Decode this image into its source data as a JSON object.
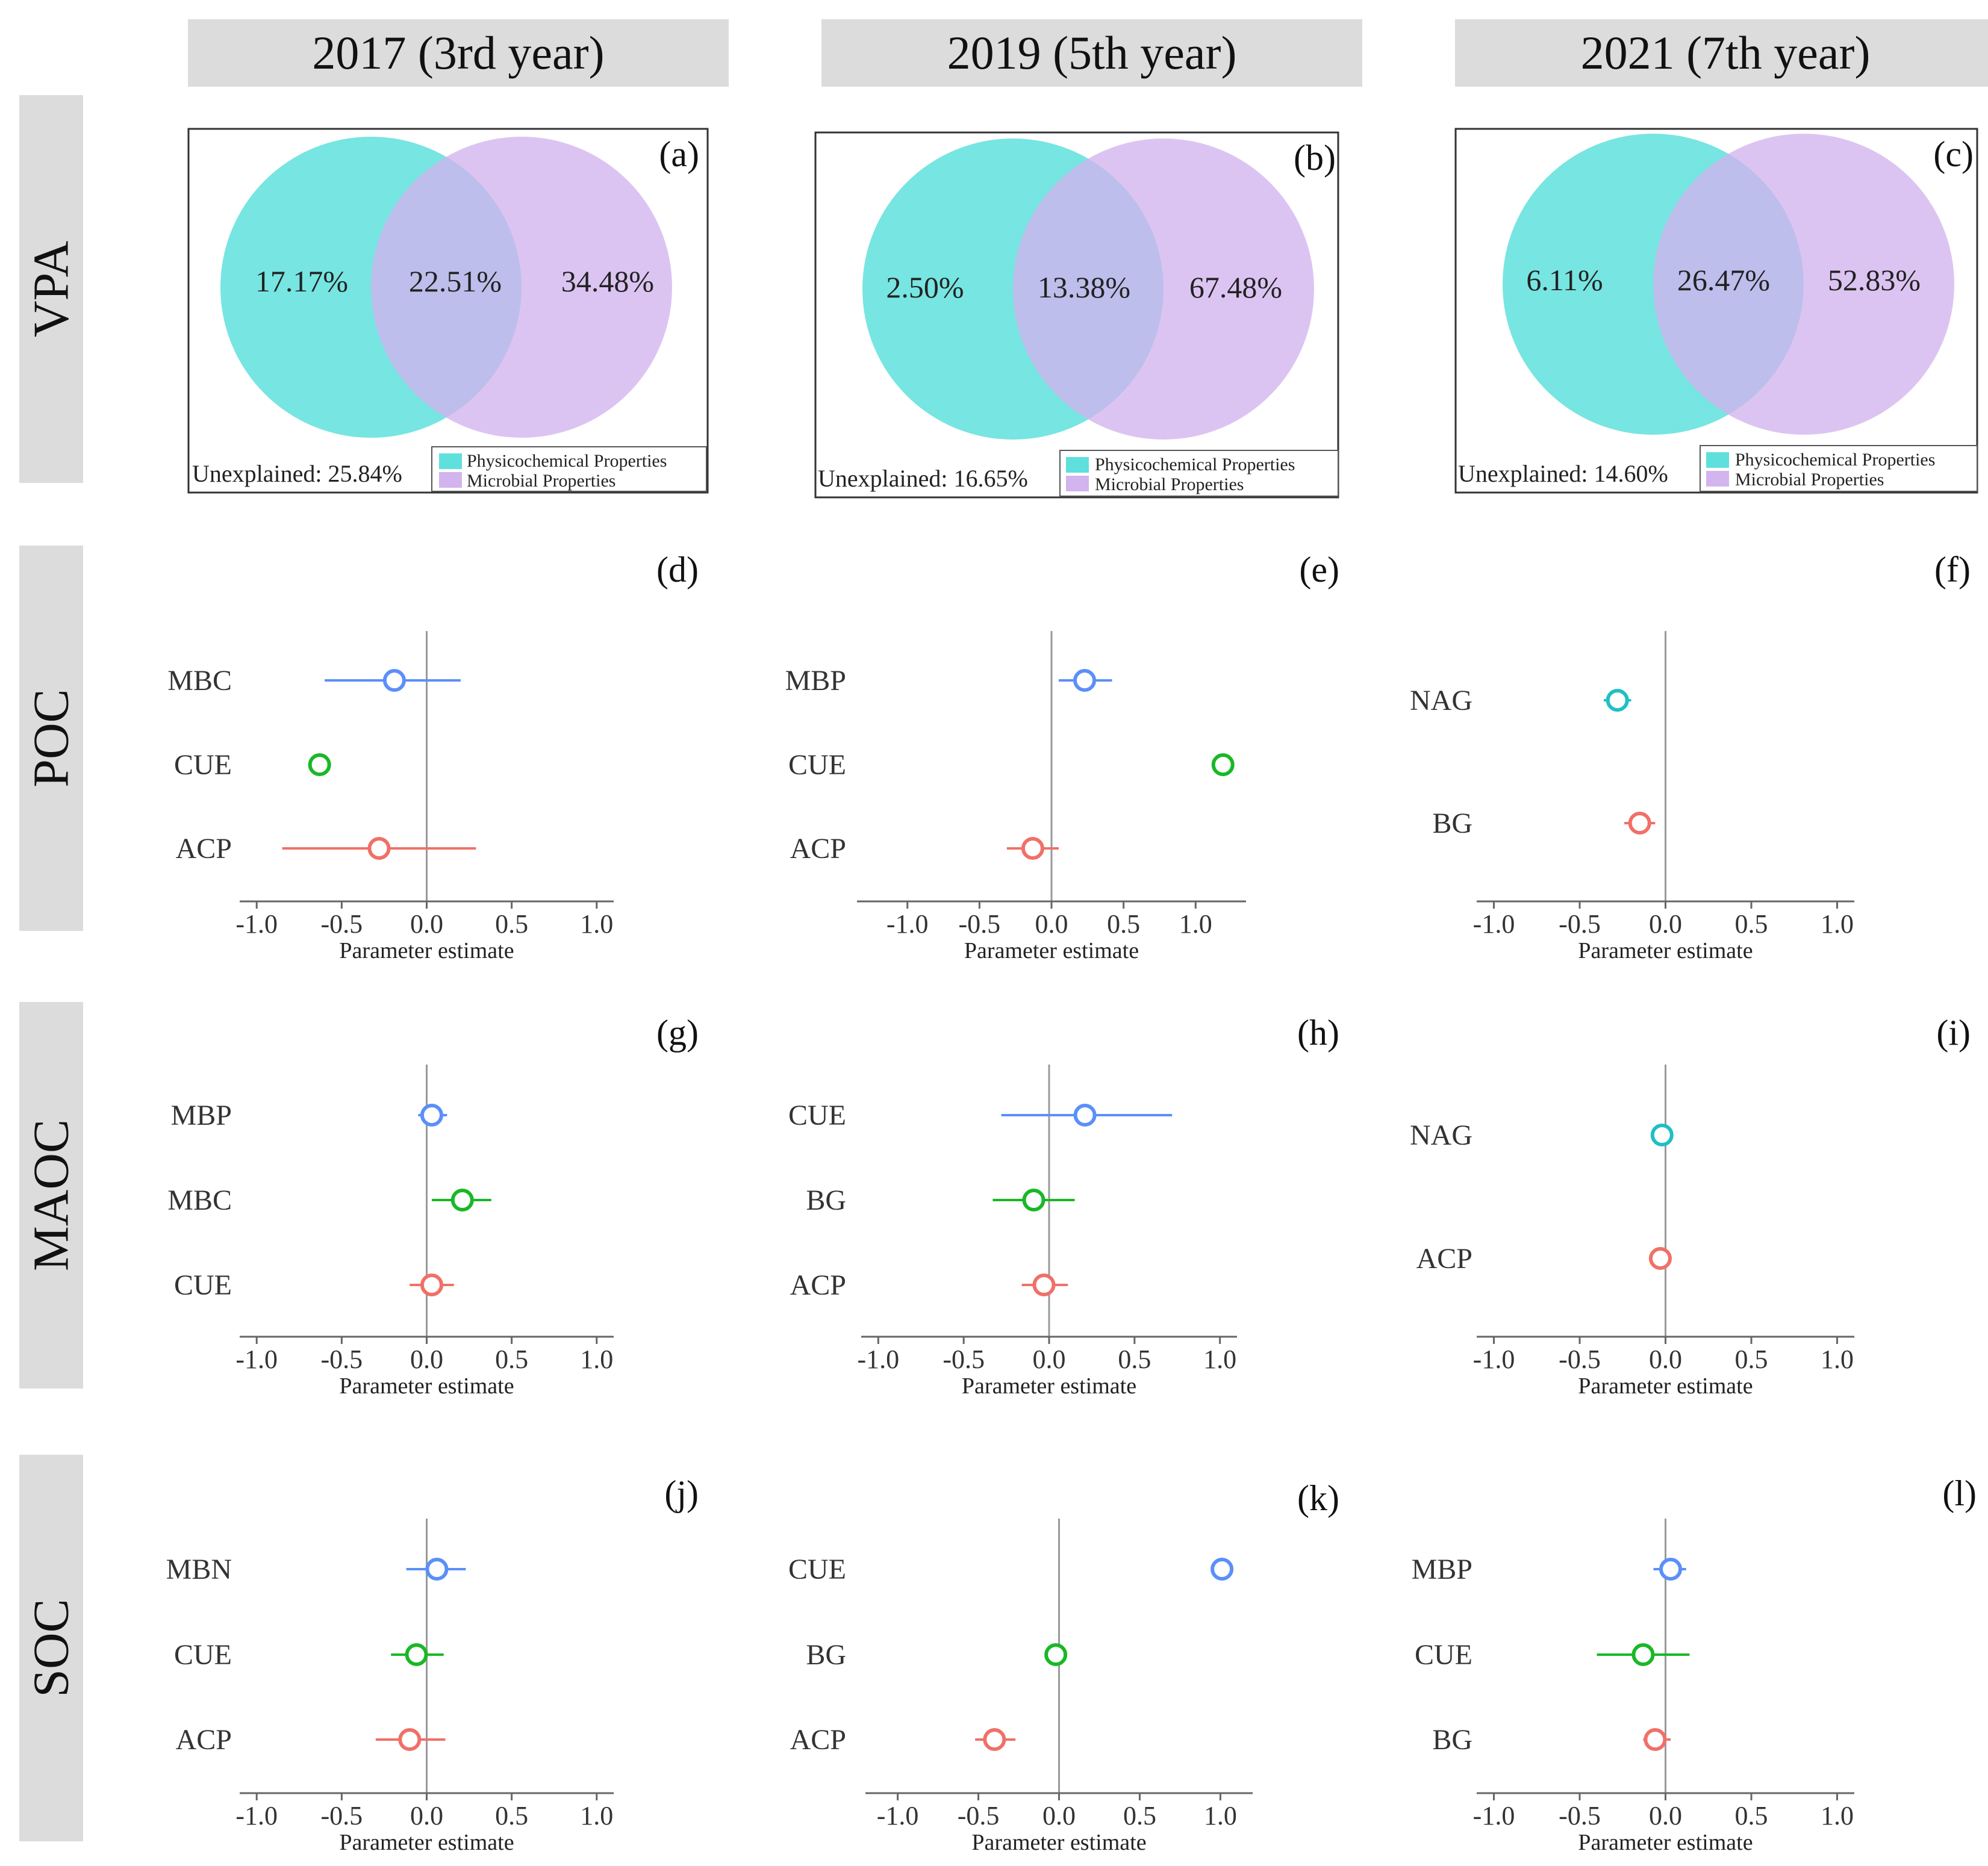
{
  "columns": [
    "2017 (3rd year)",
    "2019 (5th year)",
    "2021 (7th year)"
  ],
  "rows": [
    "VPA",
    "POC",
    "MAOC",
    "SOC"
  ],
  "colors": {
    "physicochemical": "#5fe0dc",
    "microbial": "#d2b4ee",
    "blue": "#5b8ff9",
    "green": "#19b826",
    "red": "#f07068",
    "teal": "#1fbfc6",
    "axis": "#999999"
  },
  "venn": [
    {
      "label": "(a)",
      "left": "17.17%",
      "middle": "22.51%",
      "right": "34.48%",
      "unexplained": "Unexplained: 25.84%",
      "legend_phys": "Physicochemical Properties",
      "legend_micro": "Microbial Properties"
    },
    {
      "label": "(b)",
      "left": "2.50%",
      "middle": "13.38%",
      "right": "67.48%",
      "unexplained": "Unexplained: 16.65%",
      "legend_phys": "Physicochemical Properties",
      "legend_micro": "Microbial Properties"
    },
    {
      "label": "(c)",
      "left": "6.11%",
      "middle": "26.47%",
      "right": "52.83%",
      "unexplained": "Unexplained: 14.60%",
      "legend_phys": "Physicochemical Properties",
      "legend_micro": "Microbial Properties"
    }
  ],
  "chart_data": [
    {
      "type": "forest",
      "label": "(d)",
      "row": "POC",
      "col": "2017 (3rd year)",
      "xlabel": "Parameter estimate",
      "xlim": [
        -1.1,
        1.1
      ],
      "xticks": [
        "-1.0",
        "-0.5",
        "0.0",
        "0.5",
        "1.0"
      ],
      "xtick_values": [
        -1.0,
        -0.5,
        0.0,
        0.5,
        1.0
      ],
      "points": [
        {
          "name": "MBC",
          "estimate": -0.19,
          "low": -0.6,
          "high": 0.2,
          "color": "blue"
        },
        {
          "name": "CUE",
          "estimate": -0.63,
          "low": -0.63,
          "high": -0.63,
          "color": "green"
        },
        {
          "name": "ACP",
          "estimate": -0.28,
          "low": -0.85,
          "high": 0.29,
          "color": "red"
        }
      ]
    },
    {
      "type": "forest",
      "label": "(e)",
      "row": "POC",
      "col": "2019 (5th year)",
      "xlabel": "Parameter estimate",
      "xlim": [
        -1.35,
        1.35
      ],
      "xticks": [
        "-1.0",
        "-0.5",
        "0.0",
        "0.5",
        "1.0"
      ],
      "xtick_values": [
        -1.0,
        -0.5,
        0.0,
        0.5,
        1.0
      ],
      "points": [
        {
          "name": "MBP",
          "estimate": 0.23,
          "low": 0.05,
          "high": 0.42,
          "color": "blue"
        },
        {
          "name": "CUE",
          "estimate": 1.19,
          "low": 1.19,
          "high": 1.19,
          "color": "green"
        },
        {
          "name": "ACP",
          "estimate": -0.13,
          "low": -0.31,
          "high": 0.05,
          "color": "red"
        }
      ]
    },
    {
      "type": "forest",
      "label": "(f)",
      "row": "POC",
      "col": "2021 (7th year)",
      "xlabel": "Parameter estimate",
      "xlim": [
        -1.1,
        1.1
      ],
      "xticks": [
        "-1.0",
        "-0.5",
        "0.0",
        "0.5",
        "1.0"
      ],
      "xtick_values": [
        -1.0,
        -0.5,
        0.0,
        0.5,
        1.0
      ],
      "points": [
        {
          "name": "NAG",
          "estimate": -0.28,
          "low": -0.36,
          "high": -0.2,
          "color": "teal"
        },
        {
          "name": "BG",
          "estimate": -0.15,
          "low": -0.24,
          "high": -0.06,
          "color": "red"
        }
      ]
    },
    {
      "type": "forest",
      "label": "(g)",
      "row": "MAOC",
      "col": "2017 (3rd year)",
      "xlabel": "Parameter estimate",
      "xlim": [
        -1.1,
        1.1
      ],
      "xticks": [
        "-1.0",
        "-0.5",
        "0.0",
        "0.5",
        "1.0"
      ],
      "xtick_values": [
        -1.0,
        -0.5,
        0.0,
        0.5,
        1.0
      ],
      "points": [
        {
          "name": "MBP",
          "estimate": 0.03,
          "low": -0.05,
          "high": 0.12,
          "color": "blue"
        },
        {
          "name": "MBC",
          "estimate": 0.21,
          "low": 0.03,
          "high": 0.38,
          "color": "green"
        },
        {
          "name": "CUE",
          "estimate": 0.03,
          "low": -0.1,
          "high": 0.16,
          "color": "red"
        }
      ]
    },
    {
      "type": "forest",
      "label": "(h)",
      "row": "MAOC",
      "col": "2019 (5th year)",
      "xlabel": "Parameter estimate",
      "xlim": [
        -1.1,
        1.1
      ],
      "xticks": [
        "-1.0",
        "-0.5",
        "0.0",
        "0.5",
        "1.0"
      ],
      "xtick_values": [
        -1.0,
        -0.5,
        0.0,
        0.5,
        1.0
      ],
      "points": [
        {
          "name": "CUE",
          "estimate": 0.21,
          "low": -0.28,
          "high": 0.72,
          "color": "blue"
        },
        {
          "name": "BG",
          "estimate": -0.09,
          "low": -0.33,
          "high": 0.15,
          "color": "green"
        },
        {
          "name": "ACP",
          "estimate": -0.03,
          "low": -0.16,
          "high": 0.11,
          "color": "red"
        }
      ]
    },
    {
      "type": "forest",
      "label": "(i)",
      "row": "MAOC",
      "col": "2021 (7th year)",
      "xlabel": "Parameter estimate",
      "xlim": [
        -1.1,
        1.1
      ],
      "xticks": [
        "-1.0",
        "-0.5",
        "0.0",
        "0.5",
        "1.0"
      ],
      "xtick_values": [
        -1.0,
        -0.5,
        0.0,
        0.5,
        1.0
      ],
      "points": [
        {
          "name": "NAG",
          "estimate": -0.02,
          "low": -0.02,
          "high": -0.02,
          "color": "teal"
        },
        {
          "name": "ACP",
          "estimate": -0.03,
          "low": -0.09,
          "high": 0.03,
          "color": "red"
        }
      ]
    },
    {
      "type": "forest",
      "label": "(j)",
      "row": "SOC",
      "col": "2017 (3rd year)",
      "xlabel": "Parameter estimate",
      "xlim": [
        -1.1,
        1.1
      ],
      "xticks": [
        "-1.0",
        "-0.5",
        "0.0",
        "0.5",
        "1.0"
      ],
      "xtick_values": [
        -1.0,
        -0.5,
        0.0,
        0.5,
        1.0
      ],
      "points": [
        {
          "name": "MBN",
          "estimate": 0.06,
          "low": -0.12,
          "high": 0.23,
          "color": "blue"
        },
        {
          "name": "CUE",
          "estimate": -0.06,
          "low": -0.21,
          "high": 0.1,
          "color": "green"
        },
        {
          "name": "ACP",
          "estimate": -0.1,
          "low": -0.3,
          "high": 0.11,
          "color": "red"
        }
      ]
    },
    {
      "type": "forest",
      "label": "(k)",
      "row": "SOC",
      "col": "2019 (5th year)",
      "xlabel": "Parameter estimate",
      "xlim": [
        -1.2,
        1.2
      ],
      "xticks": [
        "-1.0",
        "-0.5",
        "0.0",
        "0.5",
        "1.0"
      ],
      "xtick_values": [
        -1.0,
        -0.5,
        0.0,
        0.5,
        1.0
      ],
      "points": [
        {
          "name": "CUE",
          "estimate": 1.01,
          "low": 1.01,
          "high": 1.01,
          "color": "blue"
        },
        {
          "name": "BG",
          "estimate": -0.02,
          "low": -0.07,
          "high": 0.04,
          "color": "green"
        },
        {
          "name": "ACP",
          "estimate": -0.4,
          "low": -0.52,
          "high": -0.27,
          "color": "red"
        }
      ]
    },
    {
      "type": "forest",
      "label": "(l)",
      "row": "SOC",
      "col": "2021 (7th year)",
      "xlabel": "Parameter estimate",
      "xlim": [
        -1.1,
        1.1
      ],
      "xticks": [
        "-1.0",
        "-0.5",
        "0.0",
        "0.5",
        "1.0"
      ],
      "xtick_values": [
        -1.0,
        -0.5,
        0.0,
        0.5,
        1.0
      ],
      "points": [
        {
          "name": "MBP",
          "estimate": 0.03,
          "low": -0.07,
          "high": 0.12,
          "color": "blue"
        },
        {
          "name": "CUE",
          "estimate": -0.13,
          "low": -0.4,
          "high": 0.14,
          "color": "green"
        },
        {
          "name": "BG",
          "estimate": -0.06,
          "low": -0.13,
          "high": 0.03,
          "color": "red"
        }
      ]
    }
  ]
}
